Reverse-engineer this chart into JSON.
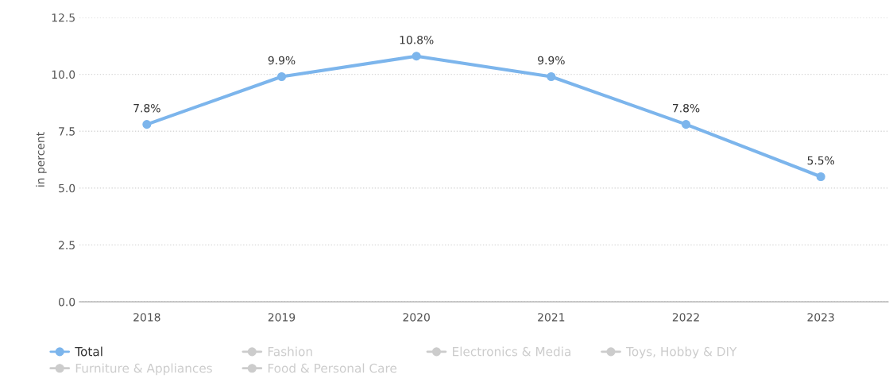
{
  "chart_data": {
    "type": "line",
    "ylabel": "in percent",
    "categories": [
      "2018",
      "2019",
      "2020",
      "2021",
      "2022",
      "2023"
    ],
    "series": [
      {
        "name": "Total",
        "color": "#7cb5ec",
        "values": [
          7.8,
          9.9,
          10.8,
          9.9,
          7.8,
          5.5
        ],
        "value_labels": [
          "7.8%",
          "9.9%",
          "10.8%",
          "9.9%",
          "7.8%",
          "5.5%"
        ]
      },
      {
        "name": "Fashion",
        "color": "#cccccc",
        "values": [
          null,
          null,
          null,
          null,
          null,
          null
        ]
      },
      {
        "name": "Electronics & Media",
        "color": "#cccccc",
        "values": [
          null,
          null,
          null,
          null,
          null,
          null
        ]
      },
      {
        "name": "Toys, Hobby & DIY",
        "color": "#cccccc",
        "values": [
          null,
          null,
          null,
          null,
          null,
          null
        ]
      },
      {
        "name": "Furniture & Appliances",
        "color": "#cccccc",
        "values": [
          null,
          null,
          null,
          null,
          null,
          null
        ]
      },
      {
        "name": "Food & Personal Care",
        "color": "#cccccc",
        "values": [
          null,
          null,
          null,
          null,
          null,
          null
        ]
      }
    ],
    "ylim": [
      0,
      12.5
    ],
    "yticks": [
      {
        "value": 0,
        "label": "0.0"
      },
      {
        "value": 2.5,
        "label": "2.5"
      },
      {
        "value": 5,
        "label": "5.0"
      },
      {
        "value": 7.5,
        "label": "7.5"
      },
      {
        "value": 10,
        "label": "10.0"
      },
      {
        "value": 12.5,
        "label": "12.5"
      }
    ],
    "grid": "y",
    "legend": "bottom",
    "marker": "circle",
    "line_style": "solid"
  }
}
